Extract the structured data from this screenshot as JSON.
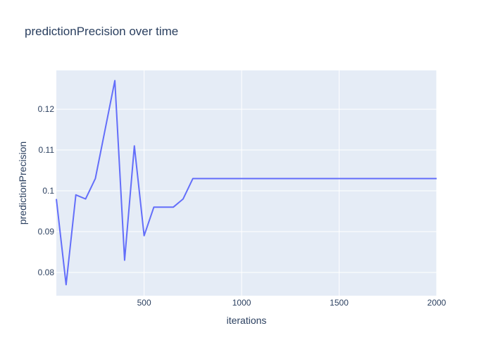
{
  "chart_data": {
    "type": "line",
    "title": "predictionPrecision over time",
    "xlabel": "iterations",
    "ylabel": "predictionPrecision",
    "xlim": [
      50,
      2000
    ],
    "ylim": [
      0.0743,
      0.1295
    ],
    "x_ticks": [
      500,
      1000,
      1500,
      2000
    ],
    "x_tick_labels": [
      "500",
      "1000",
      "1500",
      "2000"
    ],
    "y_ticks": [
      0.08,
      0.09,
      0.1,
      0.11,
      0.12
    ],
    "y_tick_labels": [
      "0.08",
      "0.09",
      "0.1",
      "0.11",
      "0.12"
    ],
    "grid": true,
    "plot_background": "#e5ecf6",
    "series": [
      {
        "color": "#636efa",
        "x": [
          50,
          100,
          150,
          200,
          250,
          300,
          350,
          400,
          450,
          500,
          550,
          600,
          650,
          700,
          750,
          800,
          850,
          900,
          950,
          1000,
          1050,
          1100,
          1150,
          1200,
          1250,
          1300,
          1350,
          1400,
          1450,
          1500,
          1550,
          1600,
          1650,
          1700,
          1750,
          1800,
          1850,
          1900,
          1950,
          2000
        ],
        "y": [
          0.098,
          0.077,
          0.099,
          0.098,
          0.103,
          0.115,
          0.127,
          0.083,
          0.111,
          0.089,
          0.096,
          0.096,
          0.096,
          0.098,
          0.103,
          0.103,
          0.103,
          0.103,
          0.103,
          0.103,
          0.103,
          0.103,
          0.103,
          0.103,
          0.103,
          0.103,
          0.103,
          0.103,
          0.103,
          0.103,
          0.103,
          0.103,
          0.103,
          0.103,
          0.103,
          0.103,
          0.103,
          0.103,
          0.103,
          0.103
        ]
      }
    ]
  }
}
